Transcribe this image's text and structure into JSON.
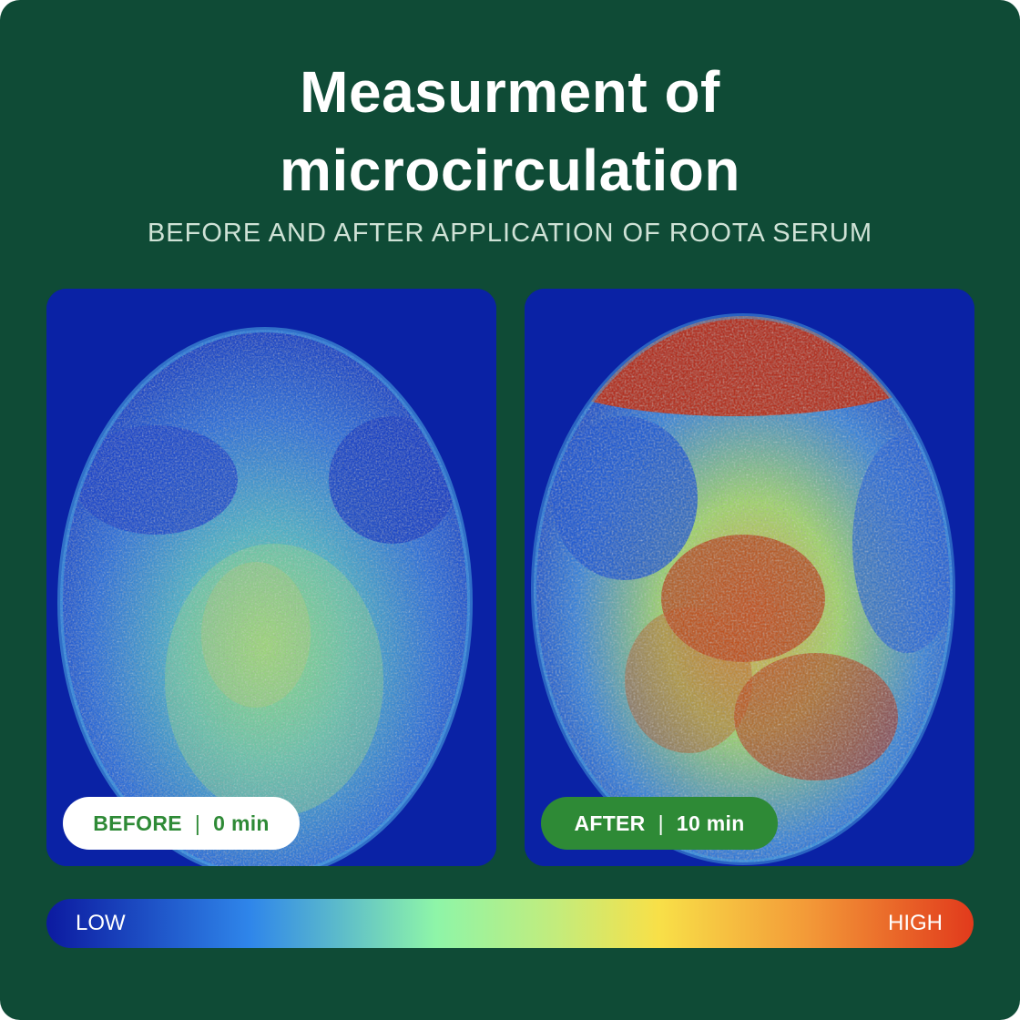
{
  "title_line1": "Measurment of",
  "title_line2": "microcirculation",
  "subtitle": "BEFORE AND AFTER APPLICATION OF ROOTA SERUM",
  "before": {
    "label": "BEFORE",
    "separator": "|",
    "time": "0 min"
  },
  "after": {
    "label": "AFTER",
    "separator": "|",
    "time": "10 min"
  },
  "scale": {
    "low": "LOW",
    "high": "HIGH"
  },
  "colors": {
    "background": "#0f4b36",
    "accent_green": "#2e8a36",
    "heat_low": "#0c1aa0",
    "heat_high": "#e13a1c"
  }
}
